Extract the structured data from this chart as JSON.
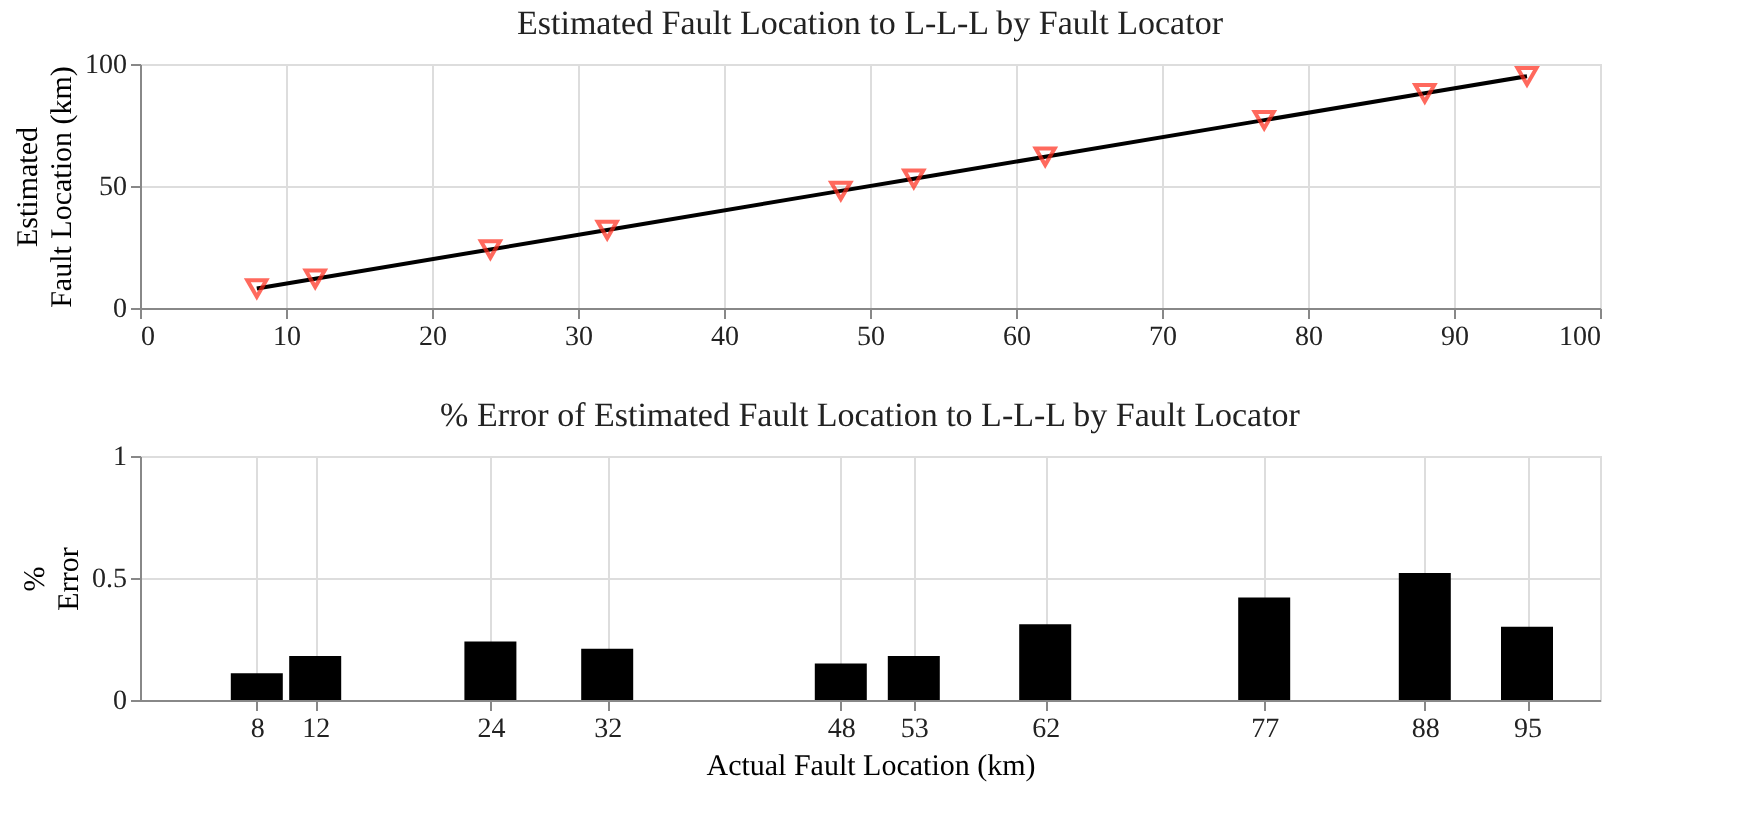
{
  "chart_data": [
    {
      "type": "line",
      "title": "Estimated Fault Location to L-L-L by Fault Locator",
      "ylabel": "Estimated Fault Location (km)",
      "x": [
        8,
        12,
        24,
        32,
        48,
        53,
        62,
        77,
        88,
        95
      ],
      "series": [
        {
          "type": "line",
          "color": "#000000",
          "marker": "none",
          "values": [
            8,
            12,
            24,
            32,
            48,
            53,
            62,
            77,
            88,
            95
          ]
        },
        {
          "type": "scatter",
          "color": "#ff2a1a",
          "marker": "triangle",
          "values": [
            8,
            12,
            24,
            32,
            48,
            53,
            62,
            77,
            88,
            95
          ]
        }
      ],
      "xlim": [
        0,
        100
      ],
      "xticks": [
        0,
        10,
        20,
        30,
        40,
        50,
        60,
        70,
        80,
        90,
        100
      ],
      "ylim": [
        0,
        100
      ],
      "yticks": [
        0,
        50,
        100
      ],
      "grid": true
    },
    {
      "type": "bar",
      "title": "% Error of Estimated Fault Location to L-L-L by Fault Locator",
      "xlabel": "Actual Fault Location (km)",
      "ylabel": "% Error",
      "x": [
        8,
        12,
        24,
        32,
        48,
        53,
        62,
        77,
        88,
        95
      ],
      "values": [
        0.11,
        0.18,
        0.24,
        0.21,
        0.15,
        0.18,
        0.31,
        0.42,
        0.52,
        0.3
      ],
      "color": "#000000",
      "xlim": [
        0,
        100
      ],
      "xticks": [
        8,
        12,
        24,
        32,
        48,
        53,
        62,
        77,
        88,
        95
      ],
      "ylim": [
        0,
        1
      ],
      "yticks": [
        0,
        0.5,
        1
      ],
      "grid": true
    }
  ]
}
